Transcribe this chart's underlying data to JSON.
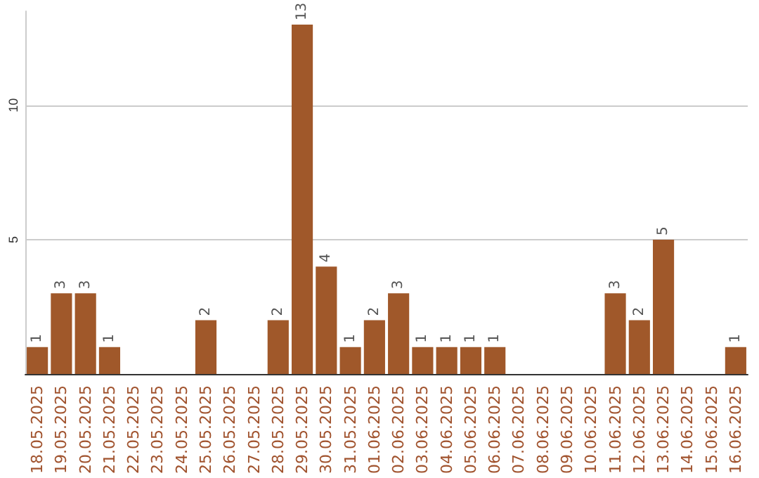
{
  "chart_data": {
    "type": "bar",
    "categories": [
      "18.05.2025",
      "19.05.2025",
      "20.05.2025",
      "21.05.2025",
      "22.05.2025",
      "23.05.2025",
      "24.05.2025",
      "25.05.2025",
      "26.05.2025",
      "27.05.2025",
      "28.05.2025",
      "29.05.2025",
      "30.05.2025",
      "31.05.2025",
      "01.06.2025",
      "02.06.2025",
      "03.06.2025",
      "04.06.2025",
      "05.06.2025",
      "06.06.2025",
      "07.06.2025",
      "08.06.2025",
      "09.06.2025",
      "10.06.2025",
      "11.06.2025",
      "12.06.2025",
      "13.06.2025",
      "14.06.2025",
      "15.06.2025",
      "16.06.2025"
    ],
    "values": [
      1,
      3,
      3,
      1,
      0,
      0,
      0,
      2,
      0,
      0,
      2,
      13,
      4,
      1,
      2,
      3,
      1,
      1,
      1,
      1,
      0,
      0,
      0,
      0,
      3,
      2,
      5,
      0,
      0,
      1
    ],
    "value_labels": [
      "1",
      "3",
      "3",
      "1",
      null,
      null,
      null,
      "2",
      null,
      null,
      "2",
      "13",
      "4",
      "1",
      "2",
      "3",
      "1",
      "1",
      "1",
      "1",
      null,
      null,
      null,
      null,
      "3",
      "2",
      "5",
      null,
      null,
      "1"
    ],
    "color": "#a0582a",
    "ylim": [
      0,
      13.5
    ],
    "yticks": [
      5,
      10
    ],
    "grid": "y"
  }
}
